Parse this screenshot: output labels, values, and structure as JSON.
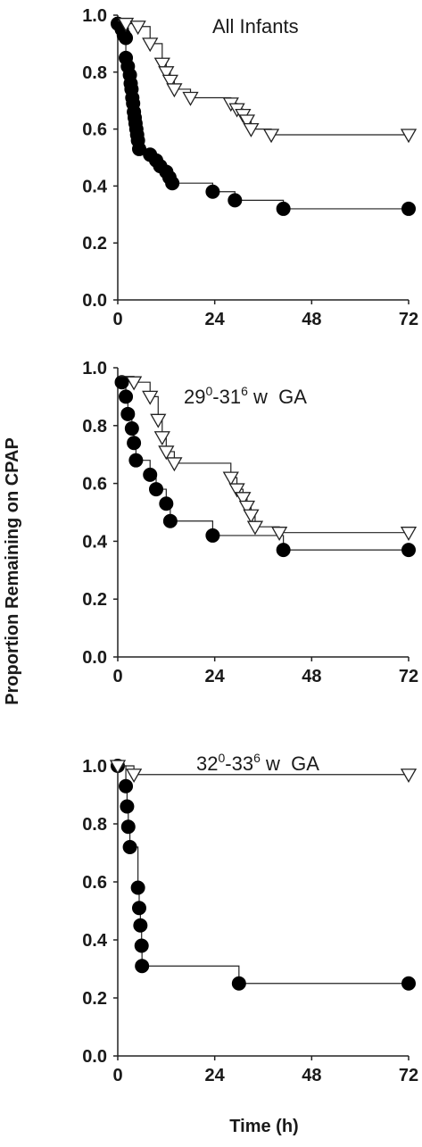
{
  "chart_data": {
    "type": "line",
    "shared_ylabel": "Proportion Remaining on CPAP",
    "shared_xlabel": "Time (h)",
    "panels": [
      {
        "title_parts": [
          {
            "text": "All Infants",
            "sup": false
          }
        ],
        "xlim": [
          0,
          72
        ],
        "ylim": [
          0,
          1
        ],
        "xticks": [
          "0",
          "24",
          "48",
          "72"
        ],
        "yticks": [
          "0.0",
          "0.2",
          "0.4",
          "0.6",
          "0.8",
          "1.0"
        ],
        "series": [
          {
            "marker": "circle",
            "steps": [
              [
                0,
                0.97
              ],
              [
                1,
                0.95
              ],
              [
                1.5,
                0.93
              ],
              [
                2,
                0.92
              ],
              [
                2,
                0.85
              ],
              [
                2.5,
                0.82
              ],
              [
                3,
                0.79
              ],
              [
                3.2,
                0.76
              ],
              [
                3.4,
                0.74
              ],
              [
                3.6,
                0.71
              ],
              [
                3.8,
                0.69
              ],
              [
                4,
                0.66
              ],
              [
                4.2,
                0.64
              ],
              [
                4.4,
                0.62
              ],
              [
                4.6,
                0.6
              ],
              [
                4.8,
                0.58
              ],
              [
                5,
                0.56
              ],
              [
                5.3,
                0.53
              ],
              [
                8,
                0.51
              ],
              [
                9.5,
                0.49
              ],
              [
                10.5,
                0.47
              ],
              [
                12,
                0.45
              ],
              [
                12.8,
                0.43
              ],
              [
                13.5,
                0.41
              ],
              [
                23.5,
                0.38
              ],
              [
                29,
                0.35
              ],
              [
                41,
                0.32
              ],
              [
                72,
                0.32
              ]
            ],
            "markers": [
              [
                0,
                0.97
              ],
              [
                1,
                0.95
              ],
              [
                1.5,
                0.93
              ],
              [
                2,
                0.92
              ],
              [
                2,
                0.85
              ],
              [
                2.5,
                0.82
              ],
              [
                3,
                0.79
              ],
              [
                3.2,
                0.76
              ],
              [
                3.4,
                0.74
              ],
              [
                3.6,
                0.71
              ],
              [
                3.8,
                0.69
              ],
              [
                4,
                0.66
              ],
              [
                4.2,
                0.64
              ],
              [
                4.4,
                0.62
              ],
              [
                4.6,
                0.6
              ],
              [
                4.8,
                0.58
              ],
              [
                5,
                0.56
              ],
              [
                5.3,
                0.53
              ],
              [
                8,
                0.51
              ],
              [
                9.5,
                0.49
              ],
              [
                10.5,
                0.47
              ],
              [
                12,
                0.45
              ],
              [
                12.8,
                0.43
              ],
              [
                13.5,
                0.41
              ],
              [
                23.5,
                0.38
              ],
              [
                29,
                0.35
              ],
              [
                41,
                0.32
              ],
              [
                72,
                0.32
              ]
            ]
          },
          {
            "marker": "triangle-down",
            "steps": [
              [
                0,
                0.98
              ],
              [
                2,
                0.97
              ],
              [
                5,
                0.96
              ],
              [
                8,
                0.9
              ],
              [
                11,
                0.83
              ],
              [
                12,
                0.8
              ],
              [
                13,
                0.77
              ],
              [
                14,
                0.74
              ],
              [
                18,
                0.71
              ],
              [
                28,
                0.69
              ],
              [
                29.5,
                0.67
              ],
              [
                31,
                0.65
              ],
              [
                32,
                0.63
              ],
              [
                33,
                0.6
              ],
              [
                38,
                0.58
              ],
              [
                72,
                0.58
              ]
            ],
            "markers": [
              [
                2,
                0.97
              ],
              [
                5,
                0.96
              ],
              [
                8,
                0.9
              ],
              [
                11,
                0.83
              ],
              [
                12,
                0.8
              ],
              [
                13,
                0.77
              ],
              [
                14,
                0.74
              ],
              [
                18,
                0.71
              ],
              [
                28,
                0.69
              ],
              [
                29.5,
                0.67
              ],
              [
                31,
                0.65
              ],
              [
                32,
                0.63
              ],
              [
                33,
                0.6
              ],
              [
                38,
                0.58
              ],
              [
                72,
                0.58
              ]
            ]
          }
        ]
      },
      {
        "title_parts": [
          {
            "text": "29",
            "sup": false
          },
          {
            "text": "0",
            "sup": true
          },
          {
            "text": "-31",
            "sup": false
          },
          {
            "text": "6",
            "sup": true
          },
          {
            "text": " w  GA",
            "sup": false
          }
        ],
        "xlim": [
          0,
          72
        ],
        "ylim": [
          0,
          1
        ],
        "xticks": [
          "0",
          "24",
          "48",
          "72"
        ],
        "yticks": [
          "0.0",
          "0.2",
          "0.4",
          "0.6",
          "0.8",
          "1.0"
        ],
        "series": [
          {
            "marker": "circle",
            "steps": [
              [
                1,
                0.95
              ],
              [
                2,
                0.9
              ],
              [
                2.5,
                0.84
              ],
              [
                3.5,
                0.79
              ],
              [
                4,
                0.74
              ],
              [
                4.5,
                0.68
              ],
              [
                8,
                0.63
              ],
              [
                9.5,
                0.58
              ],
              [
                12,
                0.53
              ],
              [
                13,
                0.47
              ],
              [
                23.5,
                0.42
              ],
              [
                41,
                0.37
              ],
              [
                72,
                0.37
              ]
            ],
            "markers": [
              [
                1,
                0.95
              ],
              [
                2,
                0.9
              ],
              [
                2.5,
                0.84
              ],
              [
                3.5,
                0.79
              ],
              [
                4,
                0.74
              ],
              [
                4.5,
                0.68
              ],
              [
                8,
                0.63
              ],
              [
                9.5,
                0.58
              ],
              [
                12,
                0.53
              ],
              [
                13,
                0.47
              ],
              [
                23.5,
                0.42
              ],
              [
                41,
                0.37
              ],
              [
                72,
                0.37
              ]
            ]
          },
          {
            "marker": "triangle-down",
            "steps": [
              [
                0,
                0.97
              ],
              [
                4,
                0.95
              ],
              [
                8,
                0.9
              ],
              [
                10,
                0.82
              ],
              [
                11,
                0.76
              ],
              [
                12,
                0.71
              ],
              [
                14,
                0.67
              ],
              [
                28,
                0.62
              ],
              [
                29.5,
                0.58
              ],
              [
                31,
                0.55
              ],
              [
                32,
                0.52
              ],
              [
                33,
                0.49
              ],
              [
                34,
                0.45
              ],
              [
                40,
                0.43
              ],
              [
                72,
                0.43
              ]
            ],
            "markers": [
              [
                4,
                0.95
              ],
              [
                8,
                0.9
              ],
              [
                10,
                0.82
              ],
              [
                11,
                0.76
              ],
              [
                12,
                0.71
              ],
              [
                14,
                0.67
              ],
              [
                28,
                0.62
              ],
              [
                29.5,
                0.58
              ],
              [
                31,
                0.55
              ],
              [
                32,
                0.52
              ],
              [
                33,
                0.49
              ],
              [
                34,
                0.45
              ],
              [
                40,
                0.43
              ],
              [
                72,
                0.43
              ]
            ]
          }
        ]
      },
      {
        "title_parts": [
          {
            "text": "32",
            "sup": false
          },
          {
            "text": "0",
            "sup": true
          },
          {
            "text": "-33",
            "sup": false
          },
          {
            "text": "6",
            "sup": true
          },
          {
            "text": " w  GA",
            "sup": false
          }
        ],
        "xlim": [
          0,
          72
        ],
        "ylim": [
          0,
          1
        ],
        "xticks": [
          "0",
          "24",
          "48",
          "72"
        ],
        "yticks": [
          "0.0",
          "0.2",
          "0.4",
          "0.6",
          "0.8",
          "1.0"
        ],
        "series": [
          {
            "marker": "circle",
            "steps": [
              [
                0,
                1.0
              ],
              [
                2,
                0.93
              ],
              [
                2.3,
                0.86
              ],
              [
                2.6,
                0.79
              ],
              [
                3,
                0.72
              ],
              [
                5,
                0.58
              ],
              [
                5.3,
                0.51
              ],
              [
                5.6,
                0.45
              ],
              [
                5.9,
                0.38
              ],
              [
                6,
                0.31
              ],
              [
                30,
                0.25
              ],
              [
                72,
                0.25
              ]
            ],
            "markers": [
              [
                0,
                1.0
              ],
              [
                2,
                0.93
              ],
              [
                2.3,
                0.86
              ],
              [
                2.6,
                0.79
              ],
              [
                3,
                0.72
              ],
              [
                5,
                0.58
              ],
              [
                5.3,
                0.51
              ],
              [
                5.6,
                0.45
              ],
              [
                5.9,
                0.38
              ],
              [
                6,
                0.31
              ],
              [
                30,
                0.25
              ],
              [
                72,
                0.25
              ]
            ]
          },
          {
            "marker": "triangle-down",
            "steps": [
              [
                0,
                1.0
              ],
              [
                4,
                0.97
              ],
              [
                72,
                0.97
              ]
            ],
            "markers": [
              [
                0,
                1.0
              ],
              [
                4,
                0.97
              ],
              [
                72,
                0.97
              ]
            ]
          }
        ]
      }
    ]
  }
}
